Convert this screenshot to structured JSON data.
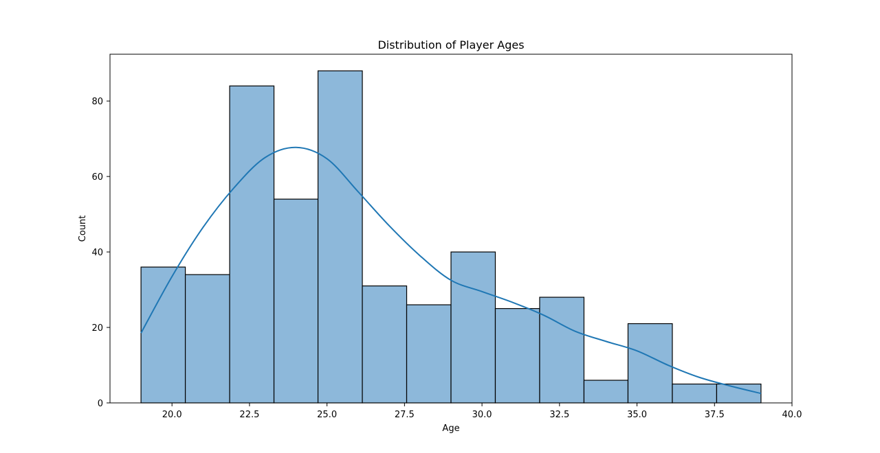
{
  "chart_data": {
    "type": "bar",
    "title": "Distribution of Player Ages",
    "xlabel": "Age",
    "ylabel": "Count",
    "xlim": [
      18.0,
      40.0
    ],
    "ylim": [
      0,
      92.4
    ],
    "x_ticks": [
      20.0,
      22.5,
      25.0,
      27.5,
      30.0,
      32.5,
      35.0,
      37.5,
      40.0
    ],
    "x_tick_labels": [
      "20.0",
      "22.5",
      "25.0",
      "27.5",
      "30.0",
      "32.5",
      "35.0",
      "37.5",
      "40.0"
    ],
    "y_ticks": [
      0,
      20,
      40,
      60,
      80
    ],
    "y_tick_labels": [
      "0",
      "20",
      "40",
      "60",
      "80"
    ],
    "bins": [
      {
        "start": 19.0,
        "end": 20.43,
        "count": 36
      },
      {
        "start": 20.43,
        "end": 21.86,
        "count": 34
      },
      {
        "start": 21.86,
        "end": 23.29,
        "count": 84
      },
      {
        "start": 23.29,
        "end": 24.71,
        "count": 54
      },
      {
        "start": 24.71,
        "end": 26.14,
        "count": 88
      },
      {
        "start": 26.14,
        "end": 27.57,
        "count": 31
      },
      {
        "start": 27.57,
        "end": 29.0,
        "count": 26
      },
      {
        "start": 29.0,
        "end": 30.43,
        "count": 40
      },
      {
        "start": 30.43,
        "end": 31.86,
        "count": 25
      },
      {
        "start": 31.86,
        "end": 33.29,
        "count": 28
      },
      {
        "start": 33.29,
        "end": 34.71,
        "count": 6
      },
      {
        "start": 34.71,
        "end": 36.14,
        "count": 21
      },
      {
        "start": 36.14,
        "end": 37.57,
        "count": 5
      },
      {
        "start": 37.57,
        "end": 39.0,
        "count": 5
      }
    ],
    "kde": {
      "x": [
        19.0,
        20.0,
        21.0,
        22.0,
        23.0,
        24.0,
        25.0,
        26.0,
        27.0,
        28.0,
        29.0,
        30.0,
        31.0,
        32.0,
        33.0,
        34.0,
        35.0,
        36.0,
        37.0,
        38.0,
        39.0
      ],
      "y": [
        18.5,
        33.5,
        46.5,
        57.0,
        65.0,
        67.7,
        64.7,
        56.0,
        47.0,
        39.0,
        32.5,
        29.5,
        26.6,
        23.2,
        19.0,
        16.3,
        13.8,
        10.0,
        6.8,
        4.5,
        2.5
      ]
    },
    "grid": false,
    "colors": {
      "bar_fill": "#8db8da",
      "bar_edge": "#000000",
      "kde_line": "#1f77b4"
    }
  }
}
